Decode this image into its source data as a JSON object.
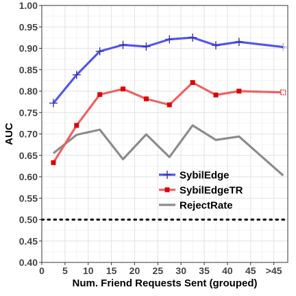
{
  "chart_data": {
    "type": "line",
    "xlabel": "Num. Friend Requests Sent (grouped)",
    "ylabel": "AUC",
    "x_ticks": [
      "0",
      "5",
      "10",
      "15",
      "20",
      "25",
      "30",
      "35",
      "40",
      "45",
      ">45"
    ],
    "xlim": [
      0,
      53
    ],
    "ylim": [
      0.4,
      1.0
    ],
    "y_ticks": [
      "0.40",
      "0.45",
      "0.50",
      "0.55",
      "0.60",
      "0.65",
      "0.70",
      "0.75",
      "0.80",
      "0.85",
      "0.90",
      "0.95",
      "1.00"
    ],
    "grid": true,
    "legend_position": "lower-right",
    "reference_line": {
      "y": 0.5,
      "style": "dotted",
      "color": "#000000"
    },
    "series": [
      {
        "name": "SybilEdge",
        "color": "#5555ee",
        "marker": "plus",
        "x": [
          2.5,
          7.5,
          12.5,
          17.5,
          22.5,
          27.5,
          32.5,
          37.5,
          42.5,
          52
        ],
        "values": [
          0.772,
          0.838,
          0.893,
          0.908,
          0.904,
          0.921,
          0.925,
          0.907,
          0.915,
          0.903
        ]
      },
      {
        "name": "SybilEdgeTR",
        "color": "#f06060",
        "marker": "square",
        "x": [
          2.5,
          7.5,
          12.5,
          17.5,
          22.5,
          27.5,
          32.5,
          37.5,
          42.5,
          52
        ],
        "values": [
          0.633,
          0.72,
          0.792,
          0.805,
          0.782,
          0.768,
          0.82,
          0.791,
          0.8,
          0.797
        ]
      },
      {
        "name": "RejectRate",
        "color": "#8c8c8c",
        "marker": "none",
        "x": [
          2.5,
          7.5,
          12.5,
          17.5,
          22.5,
          27.5,
          32.5,
          37.5,
          42.5,
          52
        ],
        "values": [
          0.655,
          0.698,
          0.71,
          0.641,
          0.699,
          0.646,
          0.72,
          0.686,
          0.694,
          0.603
        ]
      }
    ]
  }
}
